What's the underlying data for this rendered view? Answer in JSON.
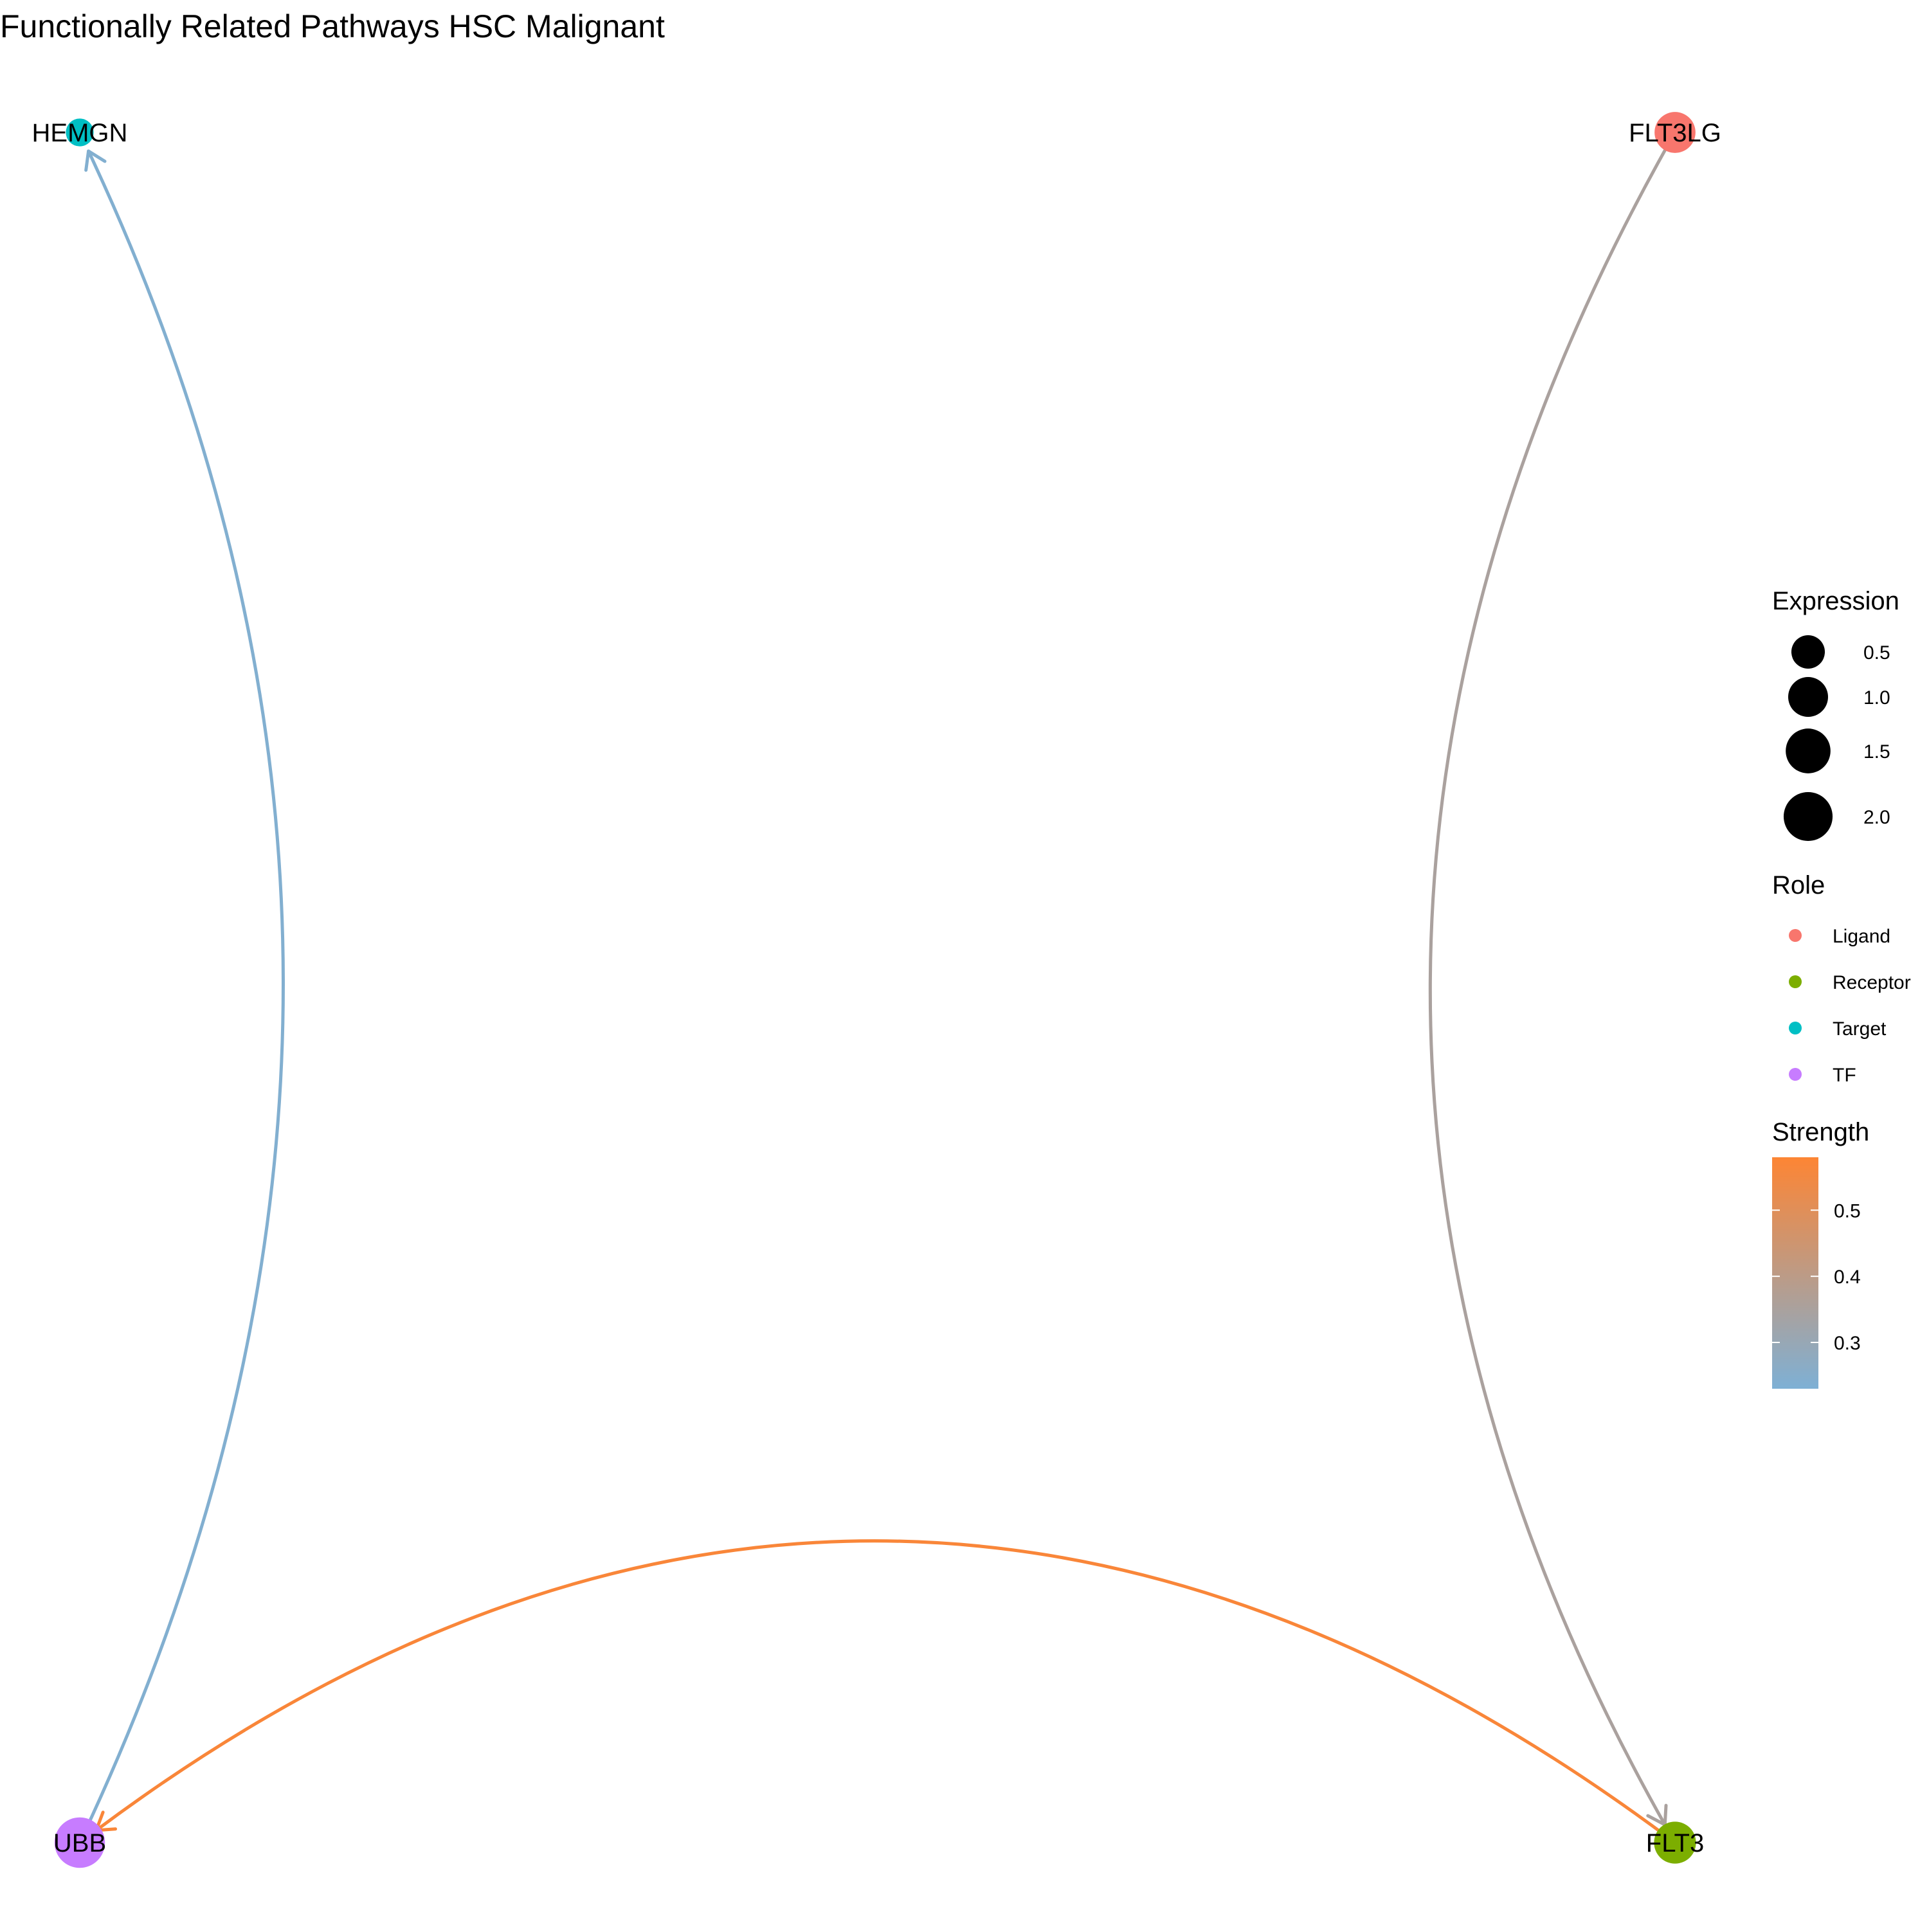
{
  "title": "Functionally Related Pathways HSC Malignant",
  "nodes": [
    {
      "id": "HEMGN",
      "label": "HEMGN",
      "role": "Target",
      "expression": 0.2
    },
    {
      "id": "FLT3LG",
      "label": "FLT3LG",
      "role": "Ligand",
      "expression": 1.1
    },
    {
      "id": "UBB",
      "label": "UBB",
      "role": "TF",
      "expression": 2.2
    },
    {
      "id": "FLT3",
      "label": "FLT3",
      "role": "Receptor",
      "expression": 1.2
    }
  ],
  "edges": [
    {
      "from": "UBB",
      "to": "HEMGN",
      "strength": 0.24
    },
    {
      "from": "FLT3LG",
      "to": "FLT3",
      "strength": 0.35
    },
    {
      "from": "FLT3",
      "to": "UBB",
      "strength": 0.57
    }
  ],
  "legend": {
    "expression": {
      "title": "Expression",
      "items": [
        {
          "label": "0.5",
          "value": 0.5
        },
        {
          "label": "1.0",
          "value": 1.0
        },
        {
          "label": "1.5",
          "value": 1.5
        },
        {
          "label": "2.0",
          "value": 2.0
        }
      ]
    },
    "role": {
      "title": "Role",
      "items": [
        {
          "label": "Ligand",
          "color": "#F8766D"
        },
        {
          "label": "Receptor",
          "color": "#7CAE00"
        },
        {
          "label": "Target",
          "color": "#00BFC4"
        },
        {
          "label": "TF",
          "color": "#C77CFF"
        }
      ]
    },
    "strength": {
      "title": "Strength",
      "low_color": "#7EB0D5",
      "high_color": "#FD8534",
      "min": 0.23,
      "max": 0.58,
      "ticks": [
        {
          "label": "0.5",
          "value": 0.5
        },
        {
          "label": "0.4",
          "value": 0.4
        },
        {
          "label": "0.3",
          "value": 0.3
        }
      ]
    }
  }
}
